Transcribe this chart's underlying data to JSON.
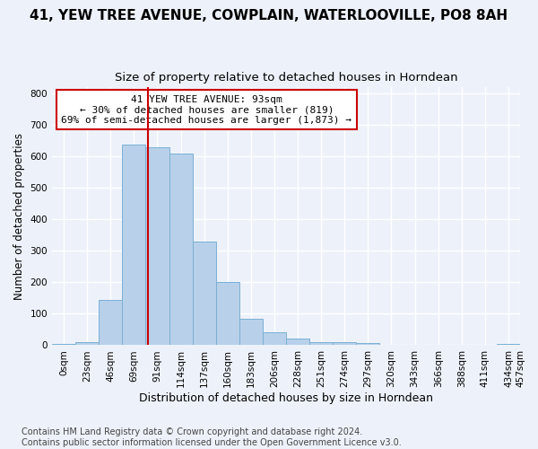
{
  "title": "41, YEW TREE AVENUE, COWPLAIN, WATERLOOVILLE, PO8 8AH",
  "subtitle": "Size of property relative to detached houses in Horndean",
  "xlabel": "Distribution of detached houses by size in Horndean",
  "ylabel": "Number of detached properties",
  "bar_values": [
    5,
    10,
    145,
    638,
    630,
    608,
    328,
    200,
    83,
    40,
    22,
    10,
    10,
    7,
    0,
    0,
    0,
    0,
    0,
    5
  ],
  "bar_labels": [
    "0sqm",
    "23sqm",
    "46sqm",
    "69sqm",
    "91sqm",
    "114sqm",
    "137sqm",
    "160sqm",
    "183sqm",
    "206sqm",
    "228sqm",
    "251sqm",
    "274sqm",
    "297sqm",
    "320sqm",
    "343sqm",
    "366sqm",
    "388sqm",
    "411sqm",
    "434sqm"
  ],
  "extra_tick_label": "457sqm",
  "bar_color": "#b8d0ea",
  "bar_edgecolor": "#7bafd4",
  "vline_color": "#cc0000",
  "annotation_text": "41 YEW TREE AVENUE: 93sqm\n← 30% of detached houses are smaller (819)\n69% of semi-detached houses are larger (1,873) →",
  "annotation_box_facecolor": "#ffffff",
  "annotation_box_edgecolor": "#cc0000",
  "ylim_max": 820,
  "yticks": [
    0,
    100,
    200,
    300,
    400,
    500,
    600,
    700,
    800
  ],
  "footer": "Contains HM Land Registry data © Crown copyright and database right 2024.\nContains public sector information licensed under the Open Government Licence v3.0.",
  "background_color": "#edf2fa",
  "grid_color": "#ffffff",
  "title_fontsize": 11,
  "subtitle_fontsize": 9.5,
  "xlabel_fontsize": 9,
  "ylabel_fontsize": 8.5,
  "tick_fontsize": 7.5,
  "annotation_fontsize": 8,
  "footer_fontsize": 7
}
